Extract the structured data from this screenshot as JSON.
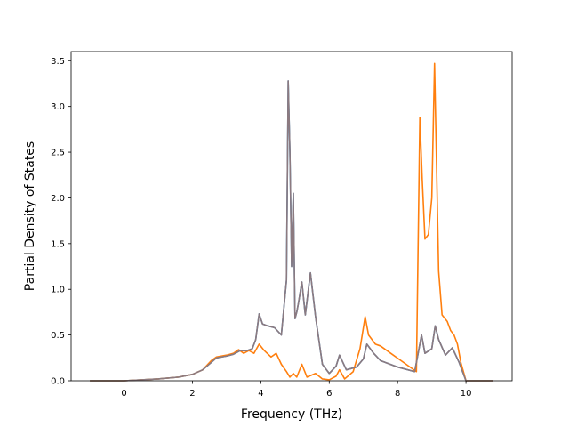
{
  "chart_data": {
    "type": "line",
    "title": "",
    "xlabel": "Frequency (THz)",
    "ylabel": "Partial Density of States",
    "xlim": [
      -1.55,
      11.35
    ],
    "ylim": [
      0.0,
      3.6
    ],
    "xticks": [
      0,
      2,
      4,
      6,
      8,
      10
    ],
    "xtick_labels": [
      "0",
      "2",
      "4",
      "6",
      "8",
      "10"
    ],
    "yticks": [
      0.0,
      0.5,
      1.0,
      1.5,
      2.0,
      2.5,
      3.0,
      3.5
    ],
    "ytick_labels": [
      "0.0",
      "0.5",
      "1.0",
      "1.5",
      "2.0",
      "2.5",
      "3.0",
      "3.5"
    ],
    "grid": false,
    "legend": "none",
    "series": [
      {
        "color": "#1f77b4",
        "x": [
          -1.0,
          0.0,
          1.0,
          1.6,
          2.0,
          2.3,
          2.55,
          2.7,
          3.0,
          3.2,
          3.4,
          3.6,
          3.75,
          3.85,
          3.95,
          4.05,
          4.2,
          4.4,
          4.6,
          4.75,
          4.8,
          4.85,
          4.9,
          4.95,
          5.0,
          5.05,
          5.1,
          5.2,
          5.3,
          5.45,
          5.6,
          5.8,
          6.0,
          6.2,
          6.3,
          6.5,
          6.8,
          7.0,
          7.1,
          7.2,
          7.3,
          7.5,
          8.0,
          8.5,
          8.6,
          8.7,
          8.8,
          9.0,
          9.1,
          9.2,
          9.4,
          9.6,
          9.8,
          10.0,
          10.8
        ],
        "y": [
          0.0,
          0.0,
          0.02,
          0.04,
          0.07,
          0.12,
          0.2,
          0.25,
          0.27,
          0.29,
          0.33,
          0.33,
          0.35,
          0.45,
          0.73,
          0.62,
          0.6,
          0.58,
          0.5,
          1.1,
          3.28,
          2.5,
          1.25,
          2.05,
          0.68,
          0.75,
          0.85,
          1.08,
          0.72,
          1.18,
          0.7,
          0.18,
          0.08,
          0.16,
          0.28,
          0.12,
          0.15,
          0.24,
          0.4,
          0.35,
          0.3,
          0.22,
          0.15,
          0.1,
          0.3,
          0.5,
          0.3,
          0.35,
          0.6,
          0.45,
          0.28,
          0.36,
          0.2,
          0.0,
          0.0
        ]
      },
      {
        "color": "#ff7f0e",
        "x": [
          -1.0,
          0.0,
          1.0,
          1.6,
          2.0,
          2.3,
          2.55,
          2.7,
          3.0,
          3.2,
          3.35,
          3.5,
          3.65,
          3.8,
          3.95,
          4.1,
          4.3,
          4.45,
          4.6,
          4.75,
          4.85,
          4.95,
          5.05,
          5.2,
          5.35,
          5.6,
          5.8,
          6.0,
          6.2,
          6.3,
          6.45,
          6.7,
          6.9,
          7.05,
          7.15,
          7.25,
          7.35,
          7.5,
          7.8,
          8.1,
          8.4,
          8.55,
          8.65,
          8.72,
          8.8,
          8.9,
          9.0,
          9.08,
          9.2,
          9.3,
          9.45,
          9.55,
          9.65,
          9.75,
          9.85,
          10.0,
          10.8
        ],
        "y": [
          0.0,
          0.0,
          0.02,
          0.04,
          0.07,
          0.12,
          0.22,
          0.26,
          0.28,
          0.3,
          0.34,
          0.3,
          0.33,
          0.3,
          0.4,
          0.33,
          0.26,
          0.3,
          0.18,
          0.1,
          0.04,
          0.08,
          0.04,
          0.18,
          0.04,
          0.08,
          0.02,
          0.01,
          0.05,
          0.12,
          0.02,
          0.1,
          0.35,
          0.7,
          0.5,
          0.45,
          0.4,
          0.38,
          0.3,
          0.22,
          0.14,
          0.1,
          2.88,
          2.2,
          1.55,
          1.6,
          2.0,
          3.47,
          1.2,
          0.72,
          0.65,
          0.55,
          0.5,
          0.4,
          0.2,
          0.0,
          0.0
        ]
      },
      {
        "color": "#8c7a80",
        "x": [
          -1.0,
          0.0,
          1.0,
          1.6,
          2.0,
          2.3,
          2.55,
          2.7,
          3.0,
          3.2,
          3.4,
          3.6,
          3.75,
          3.85,
          3.95,
          4.05,
          4.2,
          4.4,
          4.6,
          4.75,
          4.8,
          4.85,
          4.9,
          4.95,
          5.0,
          5.05,
          5.1,
          5.2,
          5.3,
          5.45,
          5.6,
          5.8,
          6.0,
          6.2,
          6.3,
          6.5,
          6.8,
          7.0,
          7.1,
          7.2,
          7.3,
          7.5,
          8.0,
          8.5,
          8.6,
          8.7,
          8.8,
          9.0,
          9.1,
          9.2,
          9.4,
          9.6,
          9.8,
          10.0,
          10.8
        ],
        "y": [
          0.0,
          0.0,
          0.02,
          0.04,
          0.07,
          0.12,
          0.2,
          0.25,
          0.27,
          0.29,
          0.33,
          0.33,
          0.35,
          0.45,
          0.73,
          0.62,
          0.6,
          0.58,
          0.5,
          1.1,
          3.28,
          2.5,
          1.25,
          2.05,
          0.68,
          0.75,
          0.85,
          1.08,
          0.72,
          1.18,
          0.7,
          0.18,
          0.08,
          0.16,
          0.28,
          0.12,
          0.15,
          0.24,
          0.4,
          0.35,
          0.3,
          0.22,
          0.15,
          0.1,
          0.3,
          0.5,
          0.3,
          0.35,
          0.6,
          0.45,
          0.28,
          0.36,
          0.2,
          0.0,
          0.0
        ]
      }
    ]
  }
}
